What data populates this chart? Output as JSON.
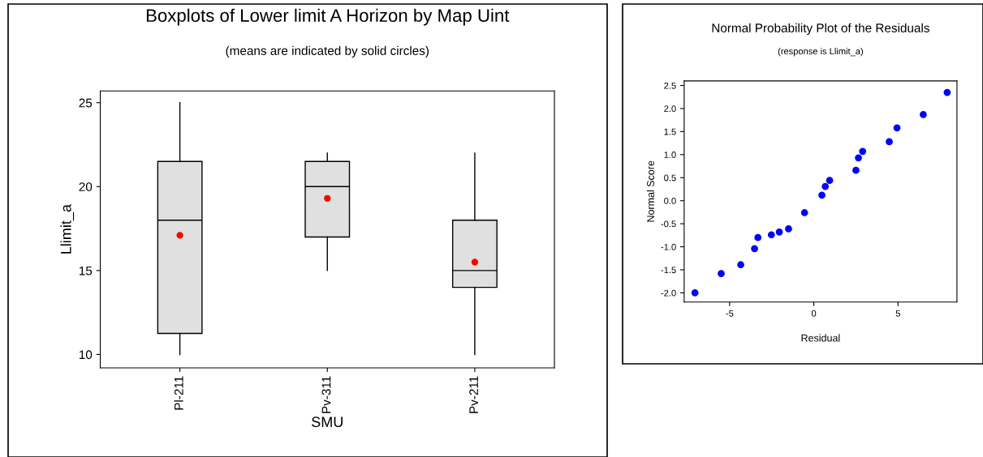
{
  "chart_data": [
    {
      "type": "box",
      "title": "Boxplots of Lower limit A Horizon by Map Uint",
      "subtitle": "(means are indicated by solid circles)",
      "xlabel": "SMU",
      "ylabel": "Llimit_a",
      "categories": [
        "Pl-211",
        "Pv-311",
        "Pv-211"
      ],
      "boxes": [
        {
          "low": 10,
          "q1": 11.25,
          "median": 18,
          "q3": 21.5,
          "high": 25,
          "mean": 17.1
        },
        {
          "low": 15,
          "q1": 17,
          "median": 20,
          "q3": 21.5,
          "high": 22,
          "mean": 19.3
        },
        {
          "low": 10,
          "q1": 14,
          "median": 15,
          "q3": 18,
          "high": 22,
          "mean": 15.5
        }
      ],
      "color": "#e0e0e0",
      "ylim": [
        9.2,
        25.7
      ],
      "yticks": [
        10,
        15,
        20,
        25
      ],
      "grid": false,
      "legend": false
    },
    {
      "type": "scatter",
      "title": "Normal Probability Plot of the Residuals",
      "subtitle": "(response is Llimit_a)",
      "xlabel": "Residual",
      "ylabel": "Normal Score",
      "marker": "circle",
      "series": [
        {
          "color": "#0000ff",
          "x": [
            -7.06,
            -5.5,
            -4.34,
            -3.52,
            -3.32,
            -2.52,
            -2.05,
            -1.5,
            -0.55,
            0.48,
            0.68,
            0.94,
            2.5,
            2.65,
            2.9,
            4.48,
            4.94,
            6.5,
            7.92
          ],
          "values": [
            -2.0,
            -1.58,
            -1.39,
            -1.04,
            -0.8,
            -0.74,
            -0.68,
            -0.61,
            -0.26,
            0.12,
            0.31,
            0.44,
            0.66,
            0.93,
            1.07,
            1.28,
            1.58,
            1.87,
            2.35
          ]
        }
      ],
      "xlim": [
        -7.7,
        8.5
      ],
      "xticks": [
        -5,
        0,
        5
      ],
      "ylim": [
        -2.2,
        2.6
      ],
      "yticks": [
        {
          "value": -2.0,
          "label": "-2.0"
        },
        {
          "value": -1.5,
          "label": "-1.5"
        },
        {
          "value": -1.0,
          "label": "-1.0"
        },
        {
          "value": -0.5,
          "label": "-0.5"
        },
        {
          "value": 0.0,
          "label": "0.0"
        },
        {
          "value": 0.5,
          "label": "0.5"
        },
        {
          "value": 1.0,
          "label": "1.0"
        },
        {
          "value": 1.5,
          "label": "1.5"
        },
        {
          "value": 2.0,
          "label": "2.0"
        },
        {
          "value": 2.5,
          "label": "2.5"
        }
      ],
      "grid": false,
      "legend": false
    }
  ]
}
